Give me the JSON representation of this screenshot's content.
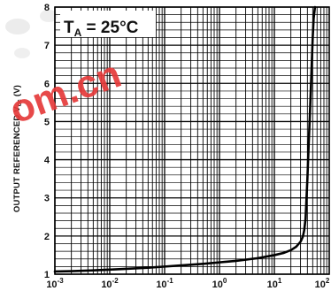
{
  "chart_data": {
    "type": "line",
    "xscale": "log",
    "xlim": [
      0.001,
      100
    ],
    "ylim": [
      1,
      8
    ],
    "grid": true,
    "xlabel": "",
    "ylabel_main": "OUTPUT REFERENCED V",
    "ylabel_sub": "cc",
    "ylabel_unit": " (V)",
    "x_ticks": [
      {
        "value": 0.001,
        "base": "10",
        "exp": "-3"
      },
      {
        "value": 0.01,
        "base": "10",
        "exp": "-2"
      },
      {
        "value": 0.1,
        "base": "10",
        "exp": "-1"
      },
      {
        "value": 1,
        "base": "10",
        "exp": "0"
      },
      {
        "value": 10,
        "base": "10",
        "exp": "1"
      },
      {
        "value": 100,
        "base": "10",
        "exp": "2"
      }
    ],
    "y_ticks": [
      "1",
      "2",
      "3",
      "4",
      "5",
      "6",
      "7",
      "8"
    ],
    "annotation": {
      "prefix": "T",
      "sub": "A",
      "rest": " = 25°C"
    },
    "series": [
      {
        "color": "#000000",
        "x": [
          0.001,
          0.002,
          0.005,
          0.01,
          0.02,
          0.05,
          0.1,
          0.2,
          0.5,
          1,
          2,
          5,
          10,
          15,
          20,
          25,
          30,
          33,
          35,
          37,
          38,
          40,
          42,
          45,
          48,
          50,
          52,
          55
        ],
        "y": [
          1.07,
          1.08,
          1.1,
          1.12,
          1.14,
          1.17,
          1.2,
          1.23,
          1.27,
          1.31,
          1.35,
          1.42,
          1.5,
          1.56,
          1.63,
          1.72,
          1.85,
          1.98,
          2.15,
          2.45,
          2.8,
          3.5,
          4.3,
          5.4,
          6.5,
          7.2,
          7.7,
          8.0
        ]
      }
    ]
  },
  "watermark": {
    "text": "om.cn",
    "color": "#e53a3a"
  }
}
